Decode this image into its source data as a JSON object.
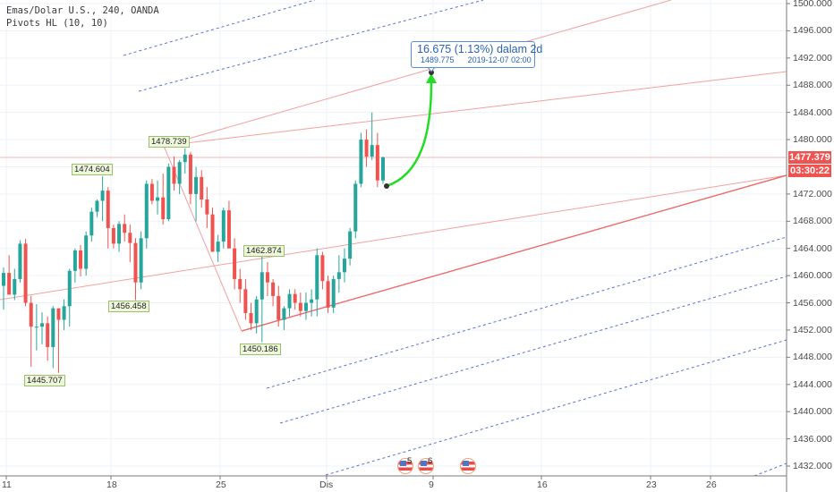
{
  "legend": {
    "symbol_line": "Emas/Dolar U.S., 240, OANDA",
    "indicator_line": "Pivots HL (10, 10)"
  },
  "price_axis": {
    "labels": [
      "1500.000",
      "1496.000",
      "1492.000",
      "1488.000",
      "1484.000",
      "1480.000",
      "1472.000",
      "1468.000",
      "1464.000",
      "1460.000",
      "1456.000",
      "1452.000",
      "1448.000",
      "1444.000",
      "1440.000",
      "1436.000",
      "1432.000"
    ],
    "current_price": "1477.379",
    "countdown": "03:30:22",
    "current_price_color": "#ef5350"
  },
  "time_axis": {
    "labels": [
      "11",
      "18",
      "25",
      "Dis",
      "9",
      "16",
      "23",
      "26"
    ]
  },
  "pivots": [
    {
      "label": "1478.739",
      "type": "high"
    },
    {
      "label": "1474.604",
      "type": "high"
    },
    {
      "label": "1462.874",
      "type": "high"
    },
    {
      "label": "1456.458",
      "type": "low"
    },
    {
      "label": "1450.186",
      "type": "low"
    },
    {
      "label": "1445.707",
      "type": "low"
    }
  ],
  "measure": {
    "change_text": "16.675 (1.13%) dalam 2d",
    "target_price": "1489.775",
    "target_time": "2019-12-07  02:00"
  },
  "events": [
    {
      "icon": "us-flag-icon",
      "count": "5"
    },
    {
      "icon": "us-flag-icon",
      "count": "6"
    },
    {
      "icon": "us-flag-icon",
      "count": ""
    }
  ],
  "colors": {
    "up": "#26a69a",
    "down": "#ef5350",
    "channel": "#f28b8b",
    "dashed": "#5b6fd6",
    "arrow": "#22dd22",
    "grid": "#eef3f8"
  },
  "chart_data": {
    "type": "candlestick",
    "title": "Emas/Dolar U.S., 240, OANDA",
    "indicator": "Pivots HL (10, 10)",
    "xlabel": "",
    "ylabel": "",
    "ylim": [
      1430,
      1500.5
    ],
    "x_ticks": [
      "11",
      "18",
      "25",
      "Dis",
      "9",
      "16",
      "23",
      "26"
    ],
    "y_ticks": [
      1432,
      1436,
      1440,
      1444,
      1448,
      1452,
      1456,
      1460,
      1464,
      1468,
      1472,
      1476,
      1480,
      1484,
      1488,
      1492,
      1496,
      1500
    ],
    "last_price": 1477.379,
    "pivot_highs": [
      1474.604,
      1478.739,
      1462.874
    ],
    "pivot_lows": [
      1445.707,
      1456.458,
      1450.186
    ],
    "projection": {
      "change": 16.675,
      "change_pct": 1.13,
      "duration": "2d",
      "from": 1473.1,
      "to": 1489.775,
      "to_time": "2019-12-07 02:00"
    },
    "candles": [
      [
        1458.5,
        1461.2,
        1455.0,
        1460.4
      ],
      [
        1460.4,
        1463.0,
        1458.0,
        1457.2
      ],
      [
        1457.2,
        1461.0,
        1456.4,
        1459.5
      ],
      [
        1459.5,
        1465.2,
        1459.0,
        1464.7
      ],
      [
        1464.7,
        1465.4,
        1455.5,
        1456.0
      ],
      [
        1456.0,
        1457.0,
        1446.6,
        1452.5
      ],
      [
        1452.5,
        1455.8,
        1449.0,
        1452.5
      ],
      [
        1452.5,
        1454.6,
        1449.9,
        1453.0
      ],
      [
        1453.0,
        1454.0,
        1447.5,
        1449.5
      ],
      [
        1449.5,
        1455.5,
        1446.4,
        1455.2
      ],
      [
        1455.2,
        1455.0,
        1445.7,
        1453.5
      ],
      [
        1453.5,
        1456.5,
        1452.0,
        1455.5
      ],
      [
        1455.5,
        1461.0,
        1452.5,
        1460.7
      ],
      [
        1460.7,
        1464.0,
        1459.0,
        1463.7
      ],
      [
        1463.7,
        1464.5,
        1459.9,
        1461.0
      ],
      [
        1461.0,
        1466.5,
        1460.0,
        1465.9
      ],
      [
        1465.9,
        1470.0,
        1465.0,
        1469.4
      ],
      [
        1469.4,
        1471.2,
        1468.6,
        1471.0
      ],
      [
        1471.0,
        1474.6,
        1468.0,
        1472.5
      ],
      [
        1472.5,
        1473.0,
        1464.0,
        1467.0
      ],
      [
        1467.0,
        1467.5,
        1464.0,
        1464.7
      ],
      [
        1464.7,
        1468.0,
        1463.5,
        1467.6
      ],
      [
        1467.6,
        1469.0,
        1465.0,
        1466.3
      ],
      [
        1466.3,
        1467.5,
        1462.0,
        1464.8
      ],
      [
        1464.8,
        1465.5,
        1456.4,
        1459.0
      ],
      [
        1459.0,
        1466.5,
        1458.0,
        1465.5
      ],
      [
        1465.5,
        1474.0,
        1464.0,
        1473.5
      ],
      [
        1473.5,
        1474.2,
        1470.5,
        1471.0
      ],
      [
        1471.0,
        1474.0,
        1469.0,
        1471.5
      ],
      [
        1471.5,
        1475.0,
        1467.5,
        1468.3
      ],
      [
        1468.3,
        1476.5,
        1468.0,
        1476.0
      ],
      [
        1476.0,
        1477.5,
        1472.5,
        1473.5
      ],
      [
        1473.5,
        1477.0,
        1472.0,
        1476.7
      ],
      [
        1476.7,
        1478.7,
        1475.0,
        1477.8
      ],
      [
        1477.8,
        1478.2,
        1470.5,
        1472.0
      ],
      [
        1472.0,
        1476.0,
        1468.0,
        1474.5
      ],
      [
        1474.5,
        1475.5,
        1470.0,
        1471.2
      ],
      [
        1471.2,
        1473.0,
        1467.0,
        1469.0
      ],
      [
        1469.0,
        1470.0,
        1464.0,
        1463.5
      ],
      [
        1463.5,
        1466.0,
        1462.0,
        1465.0
      ],
      [
        1465.0,
        1470.0,
        1464.0,
        1469.6
      ],
      [
        1469.6,
        1471.0,
        1465.0,
        1464.0
      ],
      [
        1464.0,
        1465.5,
        1458.0,
        1459.5
      ],
      [
        1459.5,
        1461.0,
        1456.0,
        1458.0
      ],
      [
        1458.0,
        1459.5,
        1453.5,
        1454.5
      ],
      [
        1454.5,
        1456.0,
        1452.0,
        1453.0
      ],
      [
        1453.0,
        1457.0,
        1451.5,
        1456.5
      ],
      [
        1456.5,
        1462.9,
        1450.2,
        1460.5
      ],
      [
        1460.5,
        1462.0,
        1457.0,
        1459.0
      ],
      [
        1459.0,
        1459.5,
        1455.5,
        1457.0
      ],
      [
        1457.0,
        1458.5,
        1452.5,
        1453.5
      ],
      [
        1453.5,
        1455.5,
        1452.0,
        1455.2
      ],
      [
        1455.2,
        1458.0,
        1454.0,
        1457.3
      ],
      [
        1457.3,
        1458.0,
        1455.0,
        1456.0
      ],
      [
        1456.0,
        1457.5,
        1454.0,
        1454.8
      ],
      [
        1454.8,
        1457.5,
        1453.5,
        1456.0
      ],
      [
        1456.0,
        1458.0,
        1454.0,
        1456.5
      ],
      [
        1456.5,
        1464.0,
        1454.0,
        1463.0
      ],
      [
        1463.0,
        1463.5,
        1458.0,
        1459.2
      ],
      [
        1459.2,
        1460.0,
        1454.5,
        1455.3
      ],
      [
        1455.3,
        1460.0,
        1454.5,
        1459.5
      ],
      [
        1459.5,
        1463.0,
        1457.5,
        1460.5
      ],
      [
        1460.5,
        1464.0,
        1459.0,
        1462.5
      ],
      [
        1462.5,
        1467.0,
        1461.5,
        1466.5
      ],
      [
        1466.5,
        1474.0,
        1465.5,
        1473.5
      ],
      [
        1473.5,
        1481.0,
        1473.0,
        1480.0
      ],
      [
        1480.0,
        1481.5,
        1476.0,
        1477.5
      ],
      [
        1477.5,
        1484.0,
        1477.0,
        1479.2
      ],
      [
        1479.2,
        1481.0,
        1473.0,
        1474.0
      ],
      [
        1474.0,
        1477.5,
        1473.5,
        1477.4
      ]
    ]
  }
}
